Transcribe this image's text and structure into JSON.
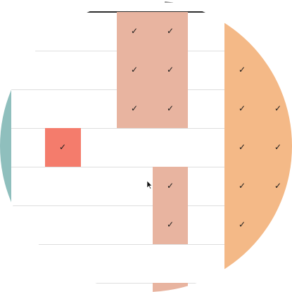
{
  "grid": {
    "check_mark": "✓"
  },
  "colors": {
    "light_salmon": "#e8b4a0",
    "orange": "#f4b987",
    "red": "#f47c6c",
    "teal": "#8fbfbd",
    "row_line": "#dedede"
  },
  "icons": {
    "cursor": "mouse-pointer-icon"
  }
}
